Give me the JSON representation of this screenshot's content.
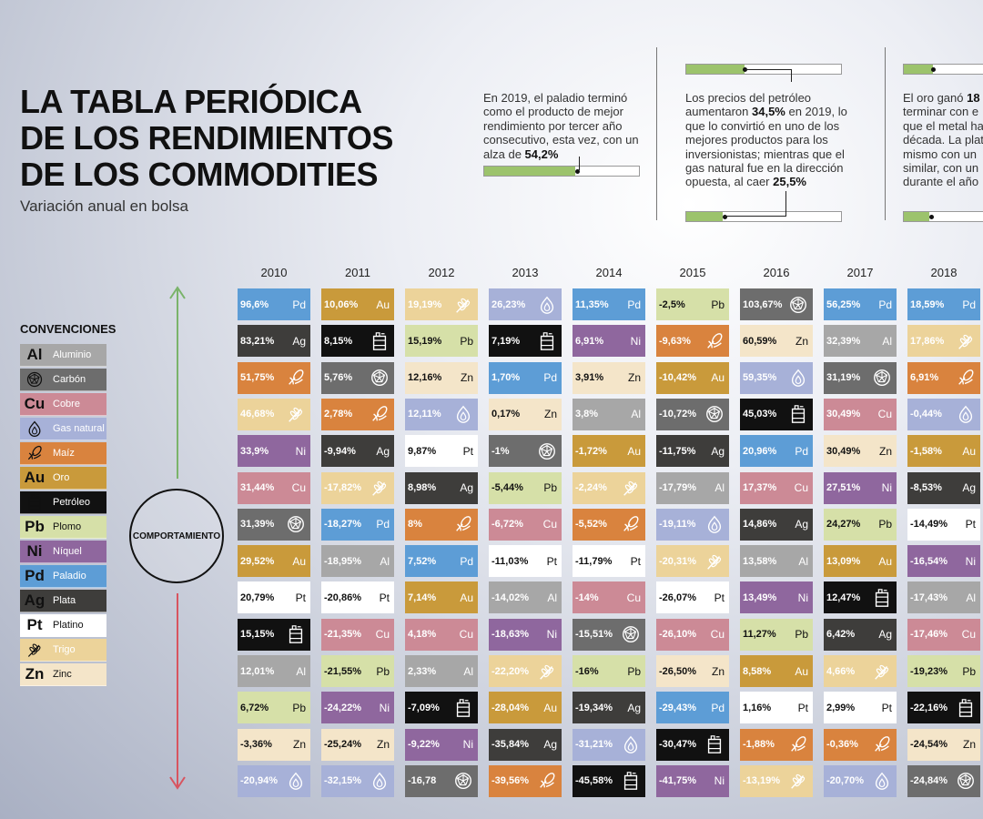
{
  "title_lines": [
    "LA TABLA PERIÓDICA",
    "DE LOS RENDIMIENTOS",
    "DE LOS COMMODITIES"
  ],
  "subtitle": "Variación anual en bolsa",
  "notes": [
    {
      "lines": [
        [
          "En 2019, el paladio terminó"
        ],
        [
          "como el producto de mejor"
        ],
        [
          "rendimiento por tercer año"
        ],
        [
          "consecutivo, esta vez, con un"
        ],
        [
          "alza de ",
          {
            "b": "54,2%"
          }
        ]
      ]
    },
    {
      "lines": [
        [
          "Los precios del petróleo"
        ],
        [
          "aumentaron ",
          {
            "b": "34,5%"
          },
          " en 2019, lo"
        ],
        [
          "que lo convirtió en uno de los"
        ],
        [
          "mejores productos para los"
        ],
        [
          "inversionistas; mientras que el"
        ],
        [
          "gas natural fue en la dirección"
        ],
        [
          "opuesta, al caer ",
          {
            "b": "25,5%"
          }
        ]
      ]
    },
    {
      "lines": [
        [
          "El oro ganó ",
          {
            "b": "18"
          }
        ],
        [
          "terminar con e"
        ],
        [
          "que el metal ha"
        ],
        [
          "década. La plat"
        ],
        [
          "mismo con un"
        ],
        [
          "similar, con un"
        ],
        [
          "durante el año"
        ]
      ]
    }
  ],
  "legend": {
    "title": "CONVENCIONES",
    "items": [
      {
        "code": "Al",
        "name": "Aluminio"
      },
      {
        "code": "C",
        "name": "Carbón"
      },
      {
        "code": "Cu",
        "name": "Cobre"
      },
      {
        "code": "GN",
        "name": "Gas natural"
      },
      {
        "code": "M",
        "name": "Maíz"
      },
      {
        "code": "Au",
        "name": "Oro"
      },
      {
        "code": "Oil",
        "name": "Petróleo"
      },
      {
        "code": "Pb",
        "name": "Plomo"
      },
      {
        "code": "Ni",
        "name": "Níquel"
      },
      {
        "code": "Pd",
        "name": "Paladio"
      },
      {
        "code": "Ag",
        "name": "Plata"
      },
      {
        "code": "Pt",
        "name": "Platino"
      },
      {
        "code": "T",
        "name": "Trigo"
      },
      {
        "code": "Zn",
        "name": "Zinc"
      }
    ]
  },
  "colors": {
    "Pd": "#5d9dd6",
    "Ag": "#3e3d3b",
    "Au": "#c99a3b",
    "Zn": "#f4e5c9",
    "Pb": "#d6e0a8",
    "Ni": "#8f679e",
    "Cu": "#cc8a96",
    "Pt": "#ffffff",
    "Al": "#a7a7a7",
    "C": "#6d6d6d",
    "GN": "#a7b1d8",
    "M": "#d9833e",
    "Oil": "#111111",
    "T": "#ecd39a"
  },
  "behavior_label": "COMPORTAMIENTO",
  "chart_data": {
    "type": "table",
    "title": "LA TABLA PERIÓDICA DE LOS RENDIMIENTOS DE LOS COMMODITIES",
    "subtitle": "Variación anual en bolsa",
    "columns": [
      {
        "year": "2010",
        "cells": [
          [
            "96,6%",
            "Pd"
          ],
          [
            "83,21%",
            "Ag"
          ],
          [
            "51,75%",
            "M"
          ],
          [
            "46,68%",
            "T"
          ],
          [
            "33,9%",
            "Ni"
          ],
          [
            "31,44%",
            "Cu"
          ],
          [
            "31,39%",
            "C"
          ],
          [
            "29,52%",
            "Au"
          ],
          [
            "20,79%",
            "Pt"
          ],
          [
            "15,15%",
            "Oil"
          ],
          [
            "12,01%",
            "Al"
          ],
          [
            "6,72%",
            "Pb"
          ],
          [
            "-3,36%",
            "Zn"
          ],
          [
            "-20,94%",
            "GN"
          ]
        ]
      },
      {
        "year": "2011",
        "cells": [
          [
            "10,06%",
            "Au"
          ],
          [
            "8,15%",
            "Oil"
          ],
          [
            "5,76%",
            "C"
          ],
          [
            "2,78%",
            "M"
          ],
          [
            "-9,94%",
            "Ag"
          ],
          [
            "-17,82%",
            "T"
          ],
          [
            "-18,27%",
            "Pd"
          ],
          [
            "-18,95%",
            "Al"
          ],
          [
            "-20,86%",
            "Pt"
          ],
          [
            "-21,35%",
            "Cu"
          ],
          [
            "-21,55%",
            "Pb"
          ],
          [
            "-24,22%",
            "Ni"
          ],
          [
            "-25,24%",
            "Zn"
          ],
          [
            "-32,15%",
            "GN"
          ]
        ]
      },
      {
        "year": "2012",
        "cells": [
          [
            "19,19%",
            "T"
          ],
          [
            "15,19%",
            "Pb"
          ],
          [
            "12,16%",
            "Zn"
          ],
          [
            "12,11%",
            "GN"
          ],
          [
            "9,87%",
            "Pt"
          ],
          [
            "8,98%",
            "Ag"
          ],
          [
            "8%",
            "M"
          ],
          [
            "7,52%",
            "Pd"
          ],
          [
            "7,14%",
            "Au"
          ],
          [
            "4,18%",
            "Cu"
          ],
          [
            "2,33%",
            "Al"
          ],
          [
            "-7,09%",
            "Oil"
          ],
          [
            "-9,22%",
            "Ni"
          ],
          [
            "-16,78",
            "C"
          ]
        ]
      },
      {
        "year": "2013",
        "cells": [
          [
            "26,23%",
            "GN"
          ],
          [
            "7,19%",
            "Oil"
          ],
          [
            "1,70%",
            "Pd"
          ],
          [
            "0,17%",
            "Zn"
          ],
          [
            "-1%",
            "C"
          ],
          [
            "-5,44%",
            "Pb"
          ],
          [
            "-6,72%",
            "Cu"
          ],
          [
            "-11,03%",
            "Pt"
          ],
          [
            "-14,02%",
            "Al"
          ],
          [
            "-18,63%",
            "Ni"
          ],
          [
            "-22,20%",
            "T"
          ],
          [
            "-28,04%",
            "Au"
          ],
          [
            "-35,84%",
            "Ag"
          ],
          [
            "-39,56%",
            "M"
          ]
        ]
      },
      {
        "year": "2014",
        "cells": [
          [
            "11,35%",
            "Pd"
          ],
          [
            "6,91%",
            "Ni"
          ],
          [
            "3,91%",
            "Zn"
          ],
          [
            "3,8%",
            "Al"
          ],
          [
            "-1,72%",
            "Au"
          ],
          [
            "-2,24%",
            "T"
          ],
          [
            "-5,52%",
            "M"
          ],
          [
            "-11,79%",
            "Pt"
          ],
          [
            "-14%",
            "Cu"
          ],
          [
            "-15,51%",
            "C"
          ],
          [
            "-16%",
            "Pb"
          ],
          [
            "-19,34%",
            "Ag"
          ],
          [
            "-31,21%",
            "GN"
          ],
          [
            "-45,58%",
            "Oil"
          ]
        ]
      },
      {
        "year": "2015",
        "cells": [
          [
            "-2,5%",
            "Pb"
          ],
          [
            "-9,63%",
            "M"
          ],
          [
            "-10,42%",
            "Au"
          ],
          [
            "-10,72%",
            "C"
          ],
          [
            "-11,75%",
            "Ag"
          ],
          [
            "-17,79%",
            "Al"
          ],
          [
            "-19,11%",
            "GN"
          ],
          [
            "-20,31%",
            "T"
          ],
          [
            "-26,07%",
            "Pt"
          ],
          [
            "-26,10%",
            "Cu"
          ],
          [
            "-26,50%",
            "Zn"
          ],
          [
            "-29,43%",
            "Pd"
          ],
          [
            "-30,47%",
            "Oil"
          ],
          [
            "-41,75%",
            "Ni"
          ]
        ]
      },
      {
        "year": "2016",
        "cells": [
          [
            "103,67%",
            "C"
          ],
          [
            "60,59%",
            "Zn"
          ],
          [
            "59,35%",
            "GN"
          ],
          [
            "45,03%",
            "Oil"
          ],
          [
            "20,96%",
            "Pd"
          ],
          [
            "17,37%",
            "Cu"
          ],
          [
            "14,86%",
            "Ag"
          ],
          [
            "13,58%",
            "Al"
          ],
          [
            "13,49%",
            "Ni"
          ],
          [
            "11,27%",
            "Pb"
          ],
          [
            "8,58%",
            "Au"
          ],
          [
            "1,16%",
            "Pt"
          ],
          [
            "-1,88%",
            "M"
          ],
          [
            "-13,19%",
            "T"
          ]
        ]
      },
      {
        "year": "2017",
        "cells": [
          [
            "56,25%",
            "Pd"
          ],
          [
            "32,39%",
            "Al"
          ],
          [
            "31,19%",
            "C"
          ],
          [
            "30,49%",
            "Cu"
          ],
          [
            "30,49%",
            "Zn"
          ],
          [
            "27,51%",
            "Ni"
          ],
          [
            "24,27%",
            "Pb"
          ],
          [
            "13,09%",
            "Au"
          ],
          [
            "12,47%",
            "Oil"
          ],
          [
            "6,42%",
            "Ag"
          ],
          [
            "4,66%",
            "T"
          ],
          [
            "2,99%",
            "Pt"
          ],
          [
            "-0,36%",
            "M"
          ],
          [
            "-20,70%",
            "GN"
          ]
        ]
      },
      {
        "year": "2018",
        "cells": [
          [
            "18,59%",
            "Pd"
          ],
          [
            "17,86%",
            "T"
          ],
          [
            "6,91%",
            "M"
          ],
          [
            "-0,44%",
            "GN"
          ],
          [
            "-1,58%",
            "Au"
          ],
          [
            "-8,53%",
            "Ag"
          ],
          [
            "-14,49%",
            "Pt"
          ],
          [
            "-16,54%",
            "Ni"
          ],
          [
            "-17,43%",
            "Al"
          ],
          [
            "-17,46%",
            "Cu"
          ],
          [
            "-19,23%",
            "Pb"
          ],
          [
            "-22,16%",
            "Oil"
          ],
          [
            "-24,54%",
            "Zn"
          ],
          [
            "-24,84%",
            "C"
          ]
        ]
      }
    ]
  }
}
